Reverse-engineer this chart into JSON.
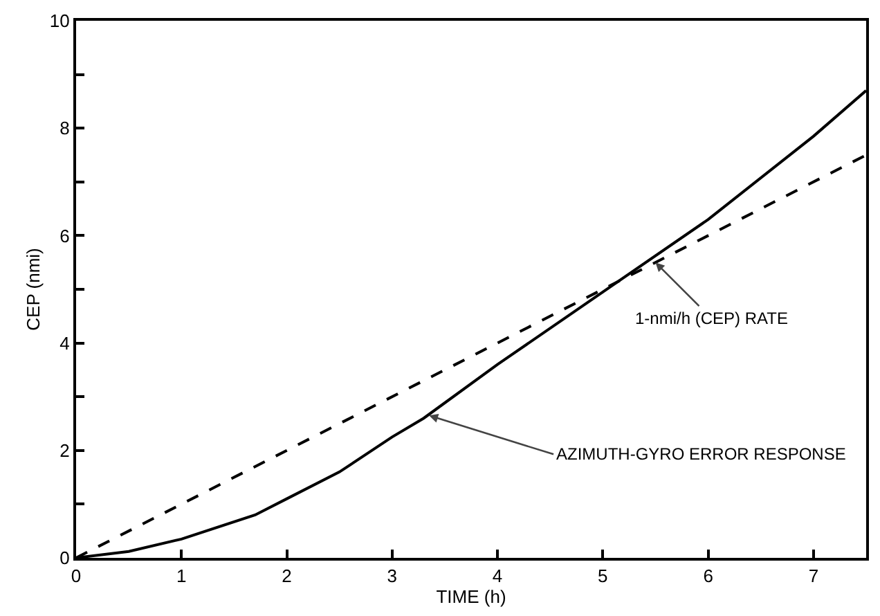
{
  "chart_data": {
    "type": "line",
    "xlabel": "TIME (h)",
    "ylabel": "CEP (nmi)",
    "xlim": [
      0,
      7.5
    ],
    "ylim": [
      0,
      10
    ],
    "xticks": [
      0,
      1,
      2,
      3,
      4,
      5,
      6,
      7
    ],
    "yticks": [
      0,
      {
        "value": 1,
        "label": null
      },
      2,
      {
        "value": 3,
        "label": null
      },
      4,
      {
        "value": 5,
        "label": null
      },
      6,
      {
        "value": 7,
        "label": null
      },
      8,
      {
        "value": 9,
        "label": null
      },
      10
    ],
    "grid": false,
    "marker": "none",
    "series": [
      {
        "color": "#000000",
        "line_style": "solid",
        "x": [
          0,
          0.5,
          1,
          1.7,
          2,
          2.5,
          3,
          3.3,
          4,
          5,
          6,
          7,
          7.5
        ],
        "values": [
          0,
          0.12,
          0.35,
          0.8,
          1.1,
          1.6,
          2.25,
          2.6,
          3.6,
          4.95,
          6.3,
          7.85,
          8.7
        ]
      },
      {
        "color": "#000000",
        "line_style": "dashed",
        "x": [
          0,
          7.5
        ],
        "values": [
          0,
          7.5
        ]
      }
    ],
    "annotations": [
      {
        "text": "1-nmi/h (CEP) RATE",
        "x": 5.5,
        "y": 5.5
      },
      {
        "text": "AZIMUTH-GYRO ERROR RESPONSE",
        "x": 3.35,
        "y": 2.65
      }
    ]
  }
}
